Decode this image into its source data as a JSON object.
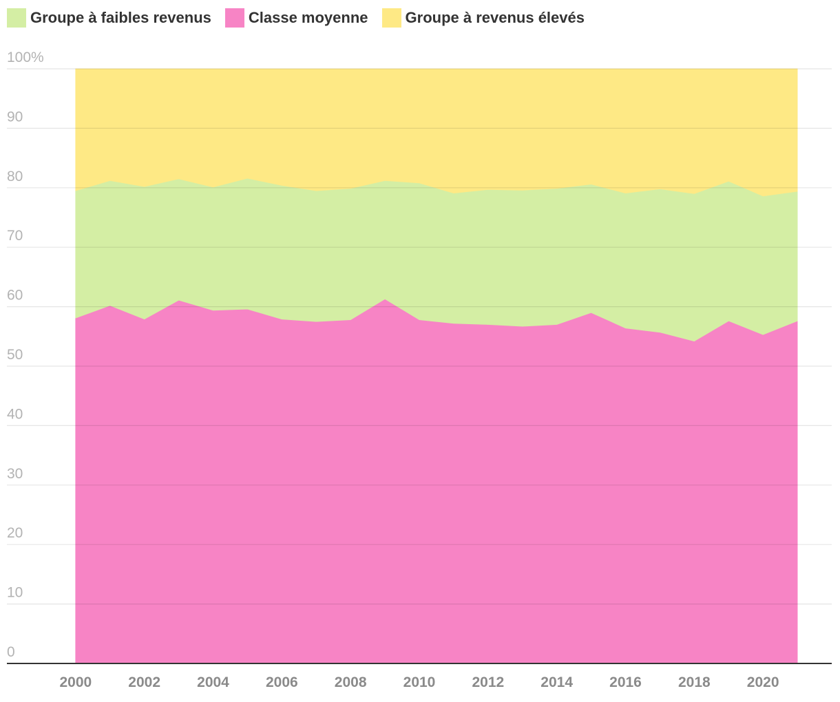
{
  "chart_data": {
    "type": "area",
    "stacked": true,
    "percent": true,
    "x": [
      2000,
      2001,
      2002,
      2003,
      2004,
      2005,
      2006,
      2007,
      2008,
      2009,
      2010,
      2011,
      2012,
      2013,
      2014,
      2015,
      2016,
      2017,
      2018,
      2019,
      2020,
      2021
    ],
    "series": [
      {
        "name": "Classe moyenne",
        "color": "#f784c5",
        "values": [
          58.1,
          60.2,
          57.9,
          61.1,
          59.4,
          59.6,
          57.9,
          57.5,
          57.8,
          61.3,
          57.8,
          57.2,
          57.0,
          56.7,
          57.0,
          59.0,
          56.4,
          55.7,
          54.2,
          57.6,
          55.3,
          57.6
        ]
      },
      {
        "name": "Groupe à faibles revenus",
        "color": "#d4eea4",
        "values": [
          21.4,
          21.0,
          22.3,
          20.4,
          20.7,
          22.0,
          22.5,
          22.0,
          22.1,
          19.9,
          23.0,
          21.9,
          22.7,
          22.9,
          22.9,
          21.6,
          22.7,
          24.1,
          24.8,
          23.5,
          23.3,
          21.8
        ]
      },
      {
        "name": "Groupe à revenus élevés",
        "color": "#fee985",
        "values": [
          20.5,
          18.8,
          19.8,
          18.5,
          19.9,
          18.4,
          19.6,
          20.5,
          20.1,
          18.8,
          19.2,
          20.9,
          20.3,
          20.4,
          20.1,
          19.4,
          20.9,
          20.2,
          21.0,
          18.9,
          21.4,
          20.6
        ]
      }
    ],
    "legend_order": [
      "Groupe à faibles revenus",
      "Classe moyenne",
      "Groupe à revenus élevés"
    ],
    "y_ticks": [
      "0",
      "10",
      "20",
      "30",
      "40",
      "50",
      "60",
      "70",
      "80",
      "90",
      "100%"
    ],
    "x_ticks": [
      "2000",
      "2002",
      "2004",
      "2006",
      "2008",
      "2010",
      "2012",
      "2014",
      "2016",
      "2018",
      "2020"
    ],
    "ylim": [
      0,
      100
    ],
    "xlim": [
      1998,
      2022
    ],
    "grid": true,
    "legend_position": "top-left",
    "title": "",
    "xlabel": "",
    "ylabel": ""
  }
}
